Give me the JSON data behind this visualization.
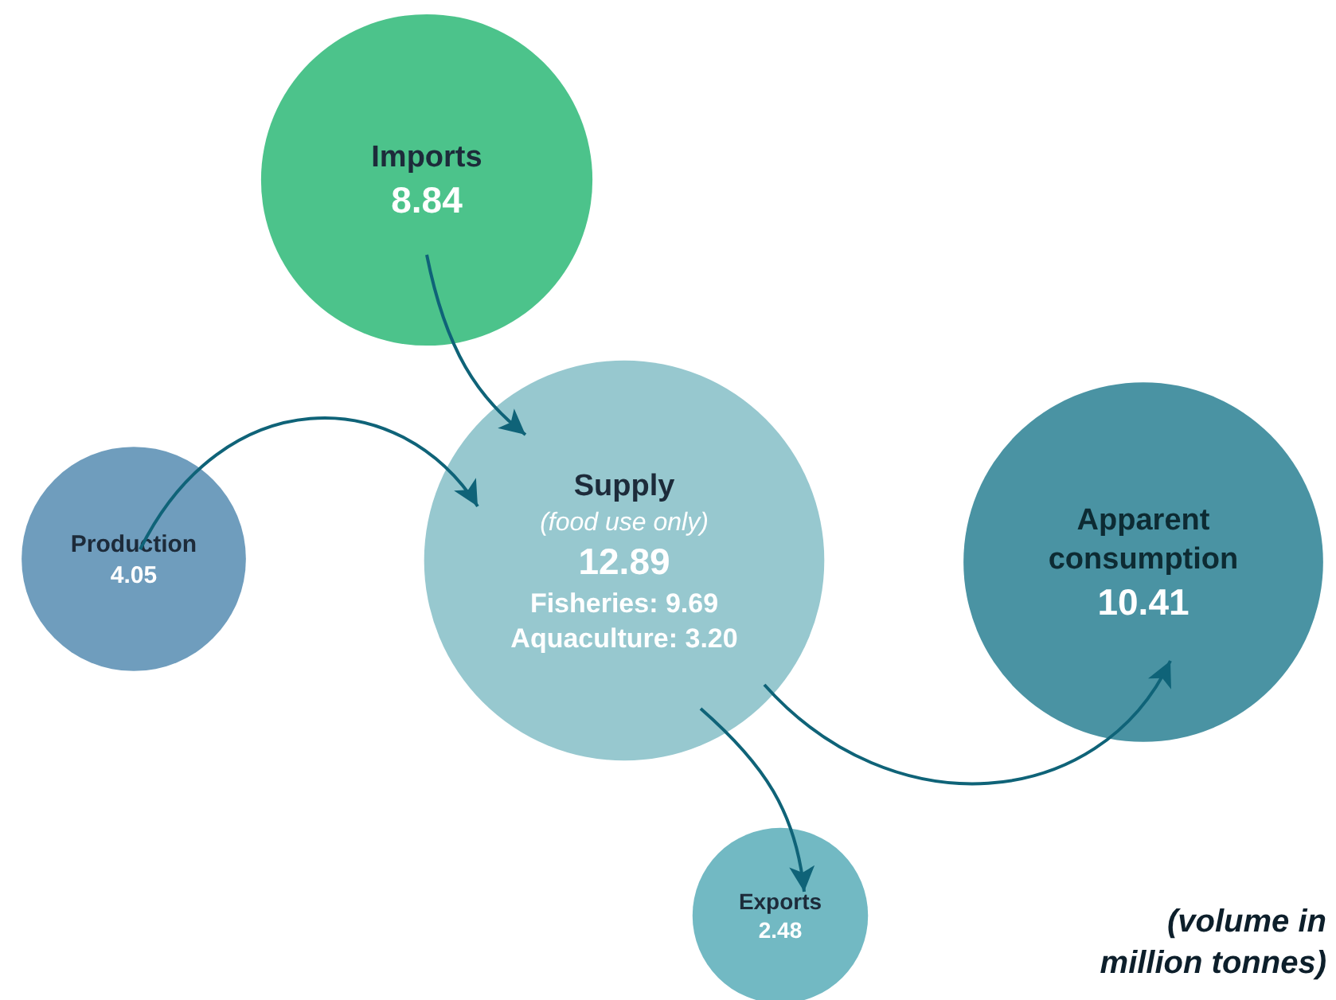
{
  "chart_data": {
    "type": "other",
    "categories": [
      "Imports",
      "Production",
      "Supply",
      "Apparent consumption",
      "Exports"
    ],
    "values": [
      8.84,
      4.05,
      12.89,
      10.41,
      2.48
    ],
    "value_labels": [
      "8.84",
      "4.05",
      "12.89",
      "10.41",
      "2.48"
    ],
    "colors": [
      "#4cc38b",
      "#6f9dbd",
      "#97c8cf",
      "#4a93a3",
      "#72b9c3"
    ],
    "annotations": [
      "(food use only)",
      "Fisheries: 9.69",
      "Aquaculture: 3.20",
      "(volume in million tonnes)"
    ]
  }
}
